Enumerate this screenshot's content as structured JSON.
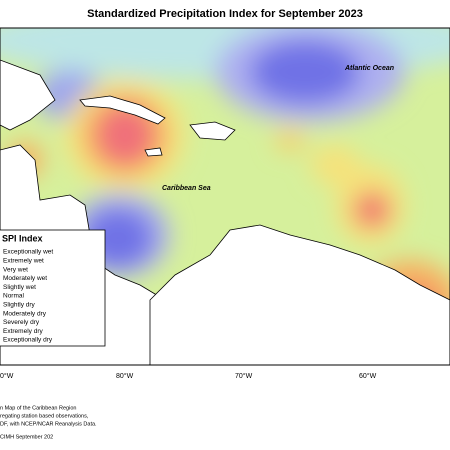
{
  "title": "Standardized Precipitation Index for September 2023",
  "labels": {
    "ocean": "Atlantic Ocean",
    "sea": "Caribbean Sea"
  },
  "longitudes": [
    "0°W",
    "80°W",
    "70°W",
    "60°W"
  ],
  "legend": {
    "title": "SPI Index",
    "items": [
      "Exceptionally wet",
      "Extremely wet",
      "Very wet",
      "Moderately wet",
      "Slightly wet",
      "Normal",
      "Slightly dry",
      "Moderately dry",
      "Severely dry",
      "Extremely dry",
      "Exceptionally dry"
    ]
  },
  "notes": [
    "n Map of the Caribbean Region",
    "regating station based observations,",
    "DF, with NCEP/NCAR Reanalysis Data.",
    "CIMH September 202"
  ]
}
